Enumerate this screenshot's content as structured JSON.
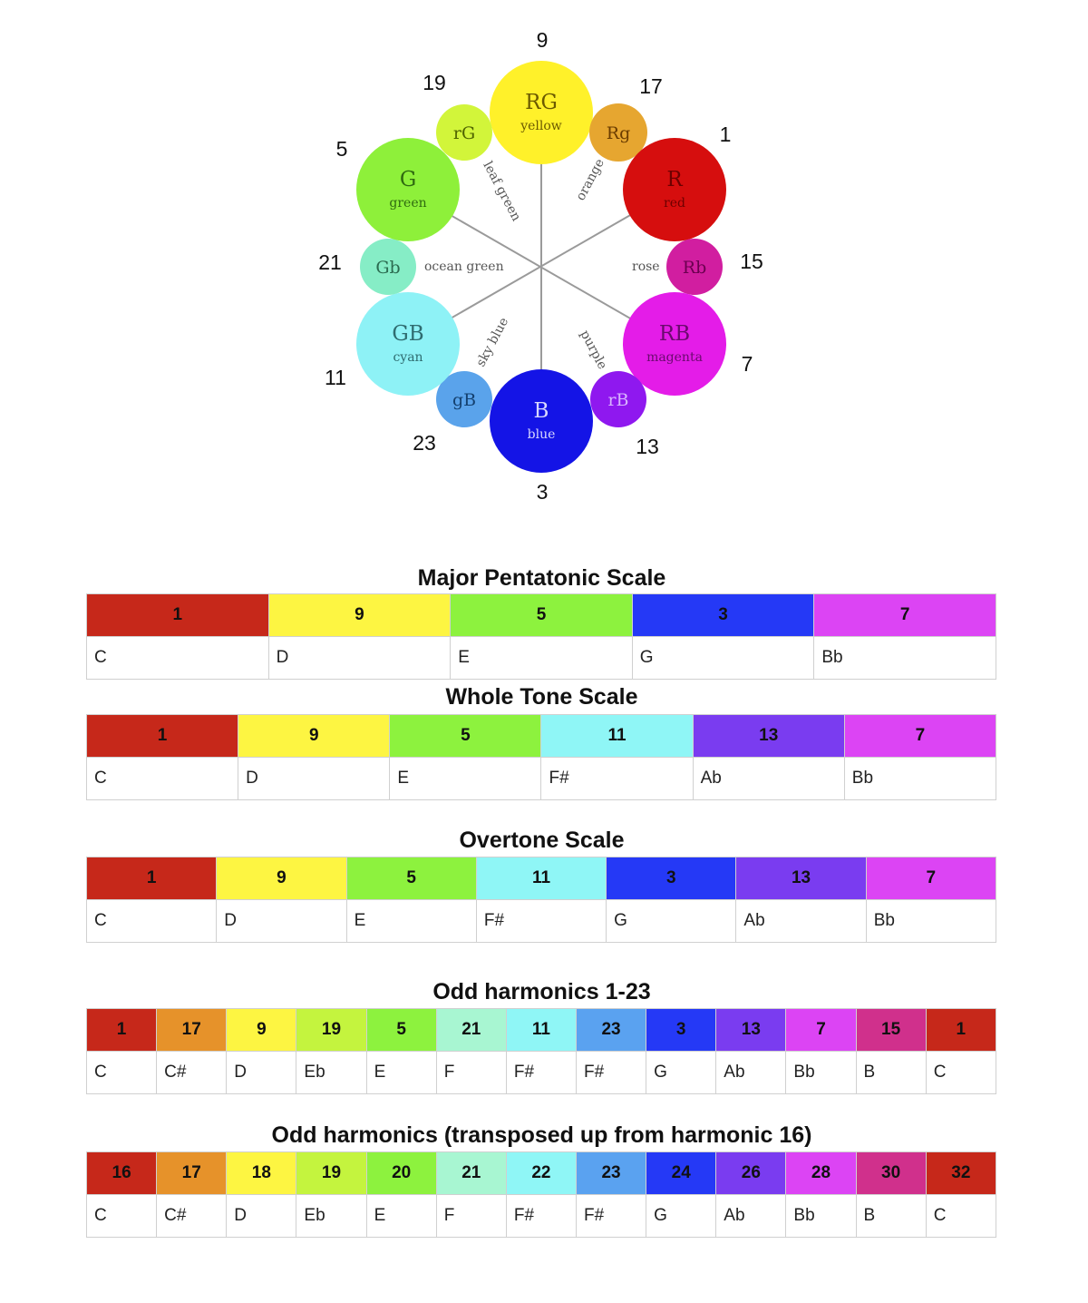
{
  "wheel": {
    "outer_numbers": [
      {
        "text": "9",
        "key": "n9"
      },
      {
        "text": "17",
        "key": "n17"
      },
      {
        "text": "1",
        "key": "n1"
      },
      {
        "text": "15",
        "key": "n15"
      },
      {
        "text": "7",
        "key": "n7"
      },
      {
        "text": "13",
        "key": "n13"
      },
      {
        "text": "3",
        "key": "n3"
      },
      {
        "text": "23",
        "key": "n23"
      },
      {
        "text": "11",
        "key": "n11"
      },
      {
        "text": "21",
        "key": "n21"
      },
      {
        "text": "5",
        "key": "n5"
      },
      {
        "text": "19",
        "key": "n19"
      }
    ],
    "circles": [
      {
        "key": "RG",
        "label": "RG",
        "sub": "yellow",
        "color": "#fff12a",
        "text_color": "#6b5a00"
      },
      {
        "key": "Rg",
        "label": "Rg",
        "sub": "",
        "color": "#e6a630",
        "text_color": "#6a3c00"
      },
      {
        "key": "R",
        "label": "R",
        "sub": "red",
        "color": "#d60e0e",
        "text_color": "#6e0000"
      },
      {
        "key": "Rb",
        "label": "Rb",
        "sub": "",
        "color": "#d11ea0",
        "text_color": "#6b0050"
      },
      {
        "key": "RB",
        "label": "RB",
        "sub": "magenta",
        "color": "#e41ce8",
        "text_color": "#6a0a6e"
      },
      {
        "key": "rB",
        "label": "rB",
        "sub": "",
        "color": "#8f18ef",
        "text_color": "#d8b4ff"
      },
      {
        "key": "B",
        "label": "B",
        "sub": "blue",
        "color": "#1414e6",
        "text_color": "#d8d8ff"
      },
      {
        "key": "gB",
        "label": "gB",
        "sub": "",
        "color": "#5aa3eb",
        "text_color": "#14406f"
      },
      {
        "key": "GB",
        "label": "GB",
        "sub": "cyan",
        "color": "#8ef2f6",
        "text_color": "#2f6c70"
      },
      {
        "key": "Gb",
        "label": "Gb",
        "sub": "",
        "color": "#86edc6",
        "text_color": "#2b6b50"
      },
      {
        "key": "G",
        "label": "G",
        "sub": "green",
        "color": "#8ef03a",
        "text_color": "#2f6a10"
      },
      {
        "key": "rG",
        "label": "rG",
        "sub": "",
        "color": "#d2f53a",
        "text_color": "#4f6400"
      }
    ],
    "spoke_labels": {
      "leaf_green": "leaf green",
      "orange": "orange",
      "ocean_green": "ocean green",
      "rose": "rose",
      "sky_blue": "sky blue",
      "purple": "purple"
    }
  },
  "scales": [
    {
      "title": "Major Pentatonic Scale",
      "numbers": [
        "1",
        "9",
        "5",
        "3",
        "7"
      ],
      "colors": [
        "#c6281a",
        "#fdf542",
        "#8df23e",
        "#2539f6",
        "#dc44f4"
      ],
      "notes": [
        "C",
        "D",
        "E",
        "G",
        "Bb"
      ]
    },
    {
      "title": "Whole Tone Scale",
      "numbers": [
        "1",
        "9",
        "5",
        "11",
        "13",
        "7"
      ],
      "colors": [
        "#c6281a",
        "#fdf542",
        "#8df23e",
        "#8ff6f6",
        "#7a3cf0",
        "#dc44f4"
      ],
      "notes": [
        "C",
        "D",
        "E",
        "F#",
        "Ab",
        "Bb"
      ]
    },
    {
      "title": "Overtone Scale",
      "numbers": [
        "1",
        "9",
        "5",
        "11",
        "3",
        "13",
        "7"
      ],
      "colors": [
        "#c6281a",
        "#fdf542",
        "#8df23e",
        "#8ff6f6",
        "#2539f6",
        "#7a3cf0",
        "#dc44f4"
      ],
      "notes": [
        "C",
        "D",
        "E",
        "F#",
        "G",
        "Ab",
        "Bb"
      ]
    },
    {
      "title": "Odd harmonics 1-23",
      "numbers": [
        "1",
        "17",
        "9",
        "19",
        "5",
        "21",
        "11",
        "23",
        "3",
        "13",
        "7",
        "15",
        "1"
      ],
      "colors": [
        "#c6281a",
        "#e6922a",
        "#fdf542",
        "#c4f43e",
        "#8df23e",
        "#a8f6d2",
        "#8ff6f6",
        "#5aa2f0",
        "#2539f6",
        "#7a3cf0",
        "#dc44f4",
        "#d0308c",
        "#c6281a"
      ],
      "notes": [
        "C",
        "C#",
        "D",
        "Eb",
        "E",
        "F",
        "F#",
        "F#",
        "G",
        "Ab",
        "Bb",
        "B",
        "C"
      ]
    },
    {
      "title": "Odd harmonics (transposed up from harmonic 16)",
      "numbers": [
        "16",
        "17",
        "18",
        "19",
        "20",
        "21",
        "22",
        "23",
        "24",
        "26",
        "28",
        "30",
        "32"
      ],
      "colors": [
        "#c6281a",
        "#e6922a",
        "#fdf542",
        "#c4f43e",
        "#8df23e",
        "#a8f6d2",
        "#8ff6f6",
        "#5aa2f0",
        "#2539f6",
        "#7a3cf0",
        "#dc44f4",
        "#d0308c",
        "#c6281a"
      ],
      "notes": [
        "C",
        "C#",
        "D",
        "Eb",
        "E",
        "F",
        "F#",
        "F#",
        "G",
        "Ab",
        "Bb",
        "B",
        "C"
      ]
    }
  ]
}
